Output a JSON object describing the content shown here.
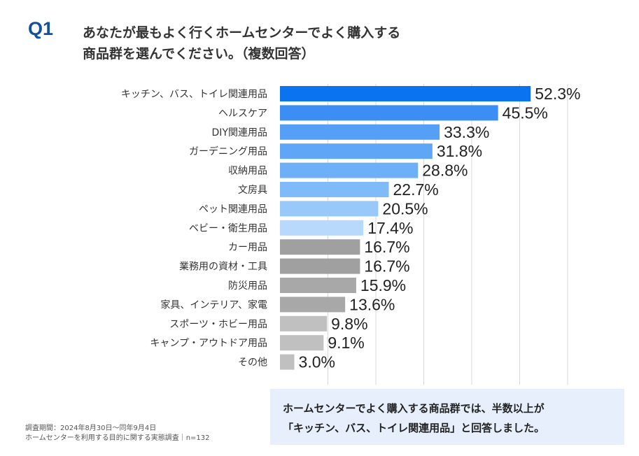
{
  "header": {
    "q_label": "Q1",
    "question_line1": "あなたが最もよく行くホームセンターでよく購入する",
    "question_line2": "商品群を選んでください。（複数回答）"
  },
  "chart_data": {
    "type": "bar",
    "orientation": "horizontal",
    "title": "",
    "xlabel": "",
    "ylabel": "",
    "unit": "%",
    "xlim": [
      0,
      60
    ],
    "grid": true,
    "legend": "none",
    "categories": [
      "キッチン、バス、トイレ関連用品",
      "ヘルスケア",
      "DIY関連用品",
      "ガーデニング用品",
      "収納用品",
      "文房具",
      "ペット関連用品",
      "ベビー・衛生用品",
      "カー用品",
      "業務用の資材・工具",
      "防災用品",
      "家具、インテリア、家電",
      "スポーツ・ホビー用品",
      "キャンプ・アウトドア用品",
      "その他"
    ],
    "values": [
      52.3,
      45.5,
      33.3,
      31.8,
      28.8,
      22.7,
      20.5,
      17.4,
      16.7,
      16.7,
      15.9,
      13.6,
      9.8,
      9.1,
      3.0
    ],
    "value_labels": [
      "52.3%",
      "45.5%",
      "33.3%",
      "31.8%",
      "28.8%",
      "22.7%",
      "20.5%",
      "17.4%",
      "16.7%",
      "16.7%",
      "15.9%",
      "13.6%",
      "9.8%",
      "9.1%",
      "3.0%"
    ],
    "colors": [
      "#0a74f0",
      "#3a8ef4",
      "#55a0f6",
      "#5fa6f7",
      "#6db0f8",
      "#7fbaf9",
      "#99c8fa",
      "#b8d9fc",
      "#a0a0a0",
      "#a0a0a0",
      "#a8a8a8",
      "#a8a8a8",
      "#c0c0c0",
      "#c0c0c0",
      "#c0c0c0"
    ]
  },
  "footnote": {
    "line1": "調査期間：2024年8月30日〜同年9月4日",
    "line2": "ホームセンターを利用する目的に関する実態調査｜n=132"
  },
  "summary": {
    "line1": "ホームセンターでよく購入する商品群では、半数以上が",
    "line2": "「キッチン、バス、トイレ関連用品」と回答しました。"
  }
}
